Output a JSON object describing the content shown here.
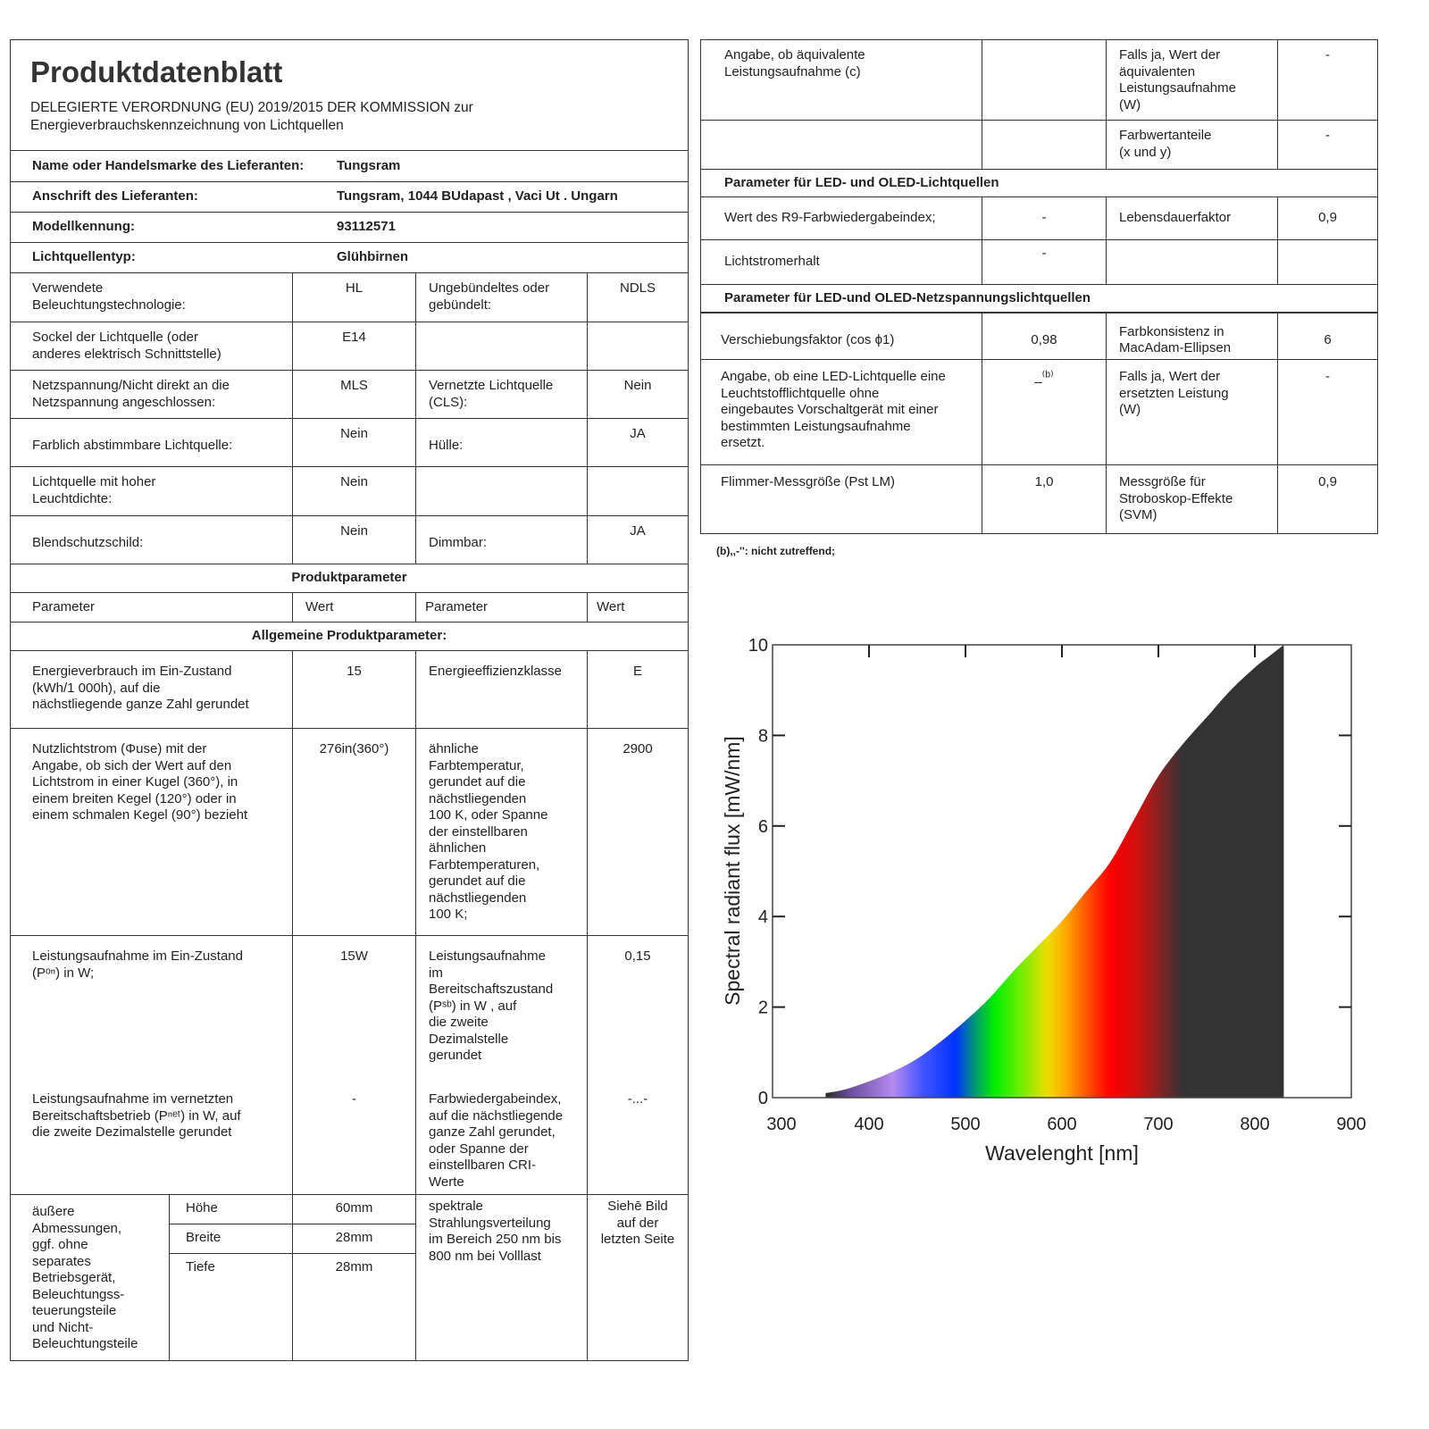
{
  "header": {
    "title": "Produktdatenblatt",
    "subtitle": "DELEGIERTE VERORDNUNG (EU) 2019/2015 DER KOMMISSION zur\nEnergieverbrauchskennzeichnung von Lichtquellen"
  },
  "supplier": [
    {
      "label": "Name oder Handelsmarke des Lieferanten:",
      "value": "Tungsram"
    },
    {
      "label": "Anschrift des Lieferanten:",
      "value": "Tungsram, 1044 BUdapast , Vaci Ut . Ungarn"
    },
    {
      "label": "Modellkennung:",
      "value": "93112571"
    },
    {
      "label": "Lichtquellentyp:",
      "value": "Glühbirnen"
    }
  ],
  "grid": [
    {
      "p1": "Verwendete\nBeleuchtungstechnologie:",
      "v1": "HL",
      "p2": "Ungebündeltes oder\ngebündelt:",
      "v2": "NDLS"
    },
    {
      "p1": "Sockel der Lichtquelle (oder\nanderes elektrisch Schnittstelle)",
      "v1": "E14",
      "p2": "",
      "v2": ""
    },
    {
      "p1": "Netzspannung/Nicht direkt an die\nNetzspannung angeschlossen:",
      "v1": "MLS",
      "p2": "Vernetzte Lichtquelle\n(CLS):",
      "v2": "Nein"
    },
    {
      "p1": "Farblich abstimmbare Lichtquelle:",
      "v1": "Nein",
      "p2": "Hülle:",
      "v2": "JA"
    },
    {
      "p1": "Lichtquelle mit hoher\nLeuchtdichte:",
      "v1": "Nein",
      "p2": "",
      "v2": ""
    },
    {
      "p1": "Blendschutzschild:",
      "v1": "Nein",
      "p2": "Dimmbar:",
      "v2": "JA"
    }
  ],
  "params": {
    "section_title": "Produktparameter",
    "col_param": "Parameter",
    "col_value": "Wert",
    "general_title": "Allgemeine Produktparameter:",
    "rows": [
      {
        "p1": "Energieverbrauch im Ein-Zustand\n(kWh/1 000h), auf die\nnächstliegende ganze Zahl gerundet",
        "v1": "15",
        "p2": "Energieeffizienzklasse",
        "v2": "E"
      },
      {
        "p1": "Nutzlichtstrom (Φuse) mit der\nAngabe, ob sich der Wert auf den\nLichtstrom in einer Kugel (360°), in\neinem breiten Kegel (120°) oder in\neinem schmalen Kegel (90°) bezieht",
        "v1": "276in(360°)",
        "p2": "ähnliche\nFarbtemperatur,\ngerundet auf die\nnächstliegenden\n100 K, oder Spanne\nder einstellbaren\nähnlichen\nFarbtemperaturen,\ngerundet auf die\nnächstliegenden\n100 K;",
        "v2": "2900"
      },
      {
        "p1": "Leistungsaufnahme im Ein-Zustand\n(Pᵒⁿ) in W;",
        "v1": "15W",
        "p2": "Leistungsaufnahme\nim\nBereitschaftszustand\n(Pˢᵇ) in W , auf\ndie zweite\nDezimalstelle\ngerundet",
        "v2": "0,15"
      },
      {
        "p1": "Leistungsaufnahme im vernetzten\nBereitschaftsbetrieb (Pⁿᵉᵗ) in W, auf\ndie zweite Dezimalstelle gerundet",
        "v1": "-",
        "p2": "Farbwiedergabeindex,\nauf die nächstliegende\nganze Zahl gerundet,\noder Spanne der\neinstellbaren CRI-\nWerte",
        "v2": "-...-"
      }
    ],
    "dimensions": {
      "label": "äußere\nAbmessungen,\nggf. ohne\nseparates\nBetriebsgerät,\nBeleuchtungss-\nteuerungsteile\nund Nicht-\nBeleuchtungsteile",
      "items": [
        {
          "name": "Höhe",
          "value": "60mm"
        },
        {
          "name": "Breite",
          "value": "28mm"
        },
        {
          "name": "Tiefe",
          "value": "28mm"
        }
      ],
      "p2": "spektrale\nStrahlungsverteilung\nim Bereich 250 nm bis\n800 nm bei Volllast",
      "v2": "Siehē Bild\nauf der\nletzten Seite"
    }
  },
  "right": {
    "rows1": [
      {
        "p1": "Angabe, ob äquivalente\nLeistungsaufnahme (c)",
        "v1": "",
        "p2": "Falls ja, Wert der\näquivalenten\nLeistungsaufnahme\n(W)",
        "v2": "-"
      },
      {
        "p1": "",
        "v1": "",
        "p2": "Farbwertanteile\n(x und y)",
        "v2": "-"
      }
    ],
    "led_title": "Parameter für LED- und OLED-Lichtquellen",
    "rows2": [
      {
        "p1": "Wert des R9-Farbwiedergabeindex;",
        "v1": "-",
        "p2": "Lebensdauerfaktor",
        "v2": "0,9"
      },
      {
        "p1": "Lichtstromerhalt",
        "v1": "-",
        "p2": "",
        "v2": ""
      }
    ],
    "mains_title": "Parameter für LED-und OLED-Netzspannungslichtquellen",
    "rows3": [
      {
        "p1": "Verschiebungsfaktor (cos ϕ1)",
        "v1": "0,98",
        "p2": "Farbkonsistenz in\nMacAdam-Ellipsen",
        "v2": "6"
      },
      {
        "p1": "Angabe, ob eine LED-Lichtquelle eine\nLeuchtstofflichtquelle ohne\neingebautes Vorschaltgerät mit einer\nbestimmten Leistungsaufnahme\nersetzt.",
        "v1": "_⁽ᵇ⁾",
        "p2": "Falls ja, Wert der\nersetzten Leistung\n(W)",
        "v2": "-"
      },
      {
        "p1": "Flimmer-Messgröße (Pst LM)",
        "v1": "1,0",
        "p2": "Messgröße für\nStroboskop-Effekte\n(SVM)",
        "v2": "0,9"
      }
    ],
    "footnote": "(b),,-'': nicht zutreffend;"
  },
  "chart_data": {
    "type": "area",
    "xlabel": "Wavelenght [nm]",
    "ylabel": "Spectral radiant flux [mW/nm]",
    "xlim": [
      300,
      900
    ],
    "ylim": [
      0,
      10
    ],
    "xticks": [
      300,
      400,
      500,
      600,
      700,
      800,
      900
    ],
    "yticks": [
      0,
      2,
      4,
      6,
      8,
      10
    ],
    "grid": false,
    "x": [
      355,
      375,
      400,
      425,
      450,
      475,
      500,
      525,
      550,
      575,
      600,
      625,
      650,
      675,
      700,
      725,
      750,
      775,
      800,
      815,
      830
    ],
    "y": [
      0.1,
      0.18,
      0.36,
      0.58,
      0.86,
      1.25,
      1.7,
      2.2,
      2.8,
      3.35,
      3.9,
      4.55,
      5.2,
      6.15,
      7.1,
      7.8,
      8.4,
      9.0,
      9.5,
      9.75,
      10
    ],
    "spectrum_colors": [
      [
        355,
        "#2a2a2a"
      ],
      [
        380,
        "#6a4d9a"
      ],
      [
        425,
        "#b58af0"
      ],
      [
        455,
        "#4455ff"
      ],
      [
        490,
        "#0033ff"
      ],
      [
        510,
        "#009970"
      ],
      [
        530,
        "#00ee00"
      ],
      [
        555,
        "#66ee00"
      ],
      [
        585,
        "#eedd00"
      ],
      [
        605,
        "#ffa500"
      ],
      [
        630,
        "#ff4400"
      ],
      [
        650,
        "#ff0000"
      ],
      [
        680,
        "#cc1111"
      ],
      [
        700,
        "#882222"
      ],
      [
        725,
        "#333333"
      ],
      [
        830,
        "#333333"
      ]
    ]
  }
}
